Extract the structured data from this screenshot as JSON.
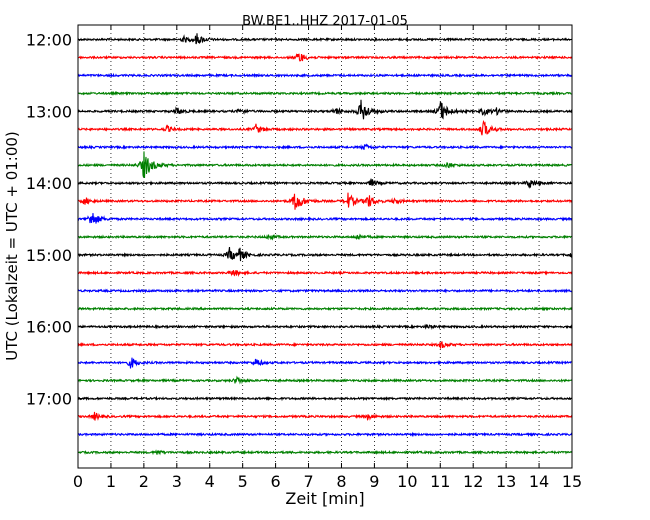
{
  "chart_data": {
    "type": "line",
    "title": "BW.BE1..HHZ 2017-01-05",
    "xlabel": "Zeit  [min]",
    "ylabel": "UTC (Lokalzeit = UTC + 01:00)",
    "xlim": [
      0,
      15
    ],
    "x_ticks": [
      "0",
      "1",
      "2",
      "3",
      "4",
      "5",
      "6",
      "7",
      "8",
      "9",
      "10",
      "11",
      "12",
      "13",
      "14",
      "15"
    ],
    "y_ticks": [
      "12:00",
      "13:00",
      "14:00",
      "15:00",
      "16:00",
      "17:00"
    ],
    "grid": "dotted vertical lines at each minute",
    "legend": "none",
    "colors": [
      "#000000",
      "#ff0000",
      "#0000ff",
      "#008000"
    ],
    "traces": [
      {
        "start": "12:00",
        "color": "#000000",
        "events": [
          [
            3.6,
            6
          ],
          [
            3.2,
            3
          ]
        ]
      },
      {
        "start": "12:15",
        "color": "#ff0000",
        "events": [
          [
            6.7,
            6
          ]
        ]
      },
      {
        "start": "12:30",
        "color": "#0000ff",
        "events": []
      },
      {
        "start": "12:45",
        "color": "#008000",
        "events": []
      },
      {
        "start": "13:00",
        "color": "#000000",
        "events": [
          [
            3.0,
            4
          ],
          [
            4.9,
            3
          ],
          [
            7.8,
            4
          ],
          [
            8.6,
            12
          ],
          [
            11.0,
            11
          ],
          [
            12.3,
            4
          ],
          [
            12.7,
            3
          ]
        ]
      },
      {
        "start": "13:15",
        "color": "#ff0000",
        "events": [
          [
            2.7,
            3
          ],
          [
            5.4,
            5
          ],
          [
            12.3,
            9
          ]
        ]
      },
      {
        "start": "13:30",
        "color": "#0000ff",
        "events": [
          [
            8.7,
            3
          ]
        ]
      },
      {
        "start": "13:45",
        "color": "#008000",
        "events": [
          [
            2.0,
            14
          ],
          [
            11.2,
            3
          ]
        ]
      },
      {
        "start": "14:00",
        "color": "#000000",
        "events": [
          [
            8.9,
            4
          ],
          [
            13.7,
            5
          ]
        ]
      },
      {
        "start": "14:15",
        "color": "#ff0000",
        "events": [
          [
            0.2,
            4
          ],
          [
            6.6,
            11
          ],
          [
            8.2,
            8
          ],
          [
            8.8,
            7
          ],
          [
            9.6,
            3
          ]
        ]
      },
      {
        "start": "14:30",
        "color": "#0000ff",
        "events": [
          [
            0.4,
            9
          ]
        ]
      },
      {
        "start": "14:45",
        "color": "#008000",
        "events": [
          [
            5.8,
            3
          ],
          [
            8.5,
            3
          ]
        ]
      },
      {
        "start": "15:00",
        "color": "#000000",
        "events": [
          [
            4.6,
            7
          ],
          [
            4.9,
            6
          ],
          [
            15.0,
            4
          ]
        ]
      },
      {
        "start": "15:15",
        "color": "#ff0000",
        "events": [
          [
            4.7,
            4
          ]
        ]
      },
      {
        "start": "15:30",
        "color": "#0000ff",
        "events": []
      },
      {
        "start": "15:45",
        "color": "#008000",
        "events": []
      },
      {
        "start": "16:00",
        "color": "#000000",
        "events": [
          [
            10.6,
            2
          ]
        ]
      },
      {
        "start": "16:15",
        "color": "#ff0000",
        "events": [
          [
            11.0,
            4
          ]
        ]
      },
      {
        "start": "16:30",
        "color": "#0000ff",
        "events": [
          [
            1.6,
            6
          ],
          [
            5.4,
            4
          ]
        ]
      },
      {
        "start": "16:45",
        "color": "#008000",
        "events": [
          [
            4.8,
            4
          ]
        ]
      },
      {
        "start": "17:00",
        "color": "#000000",
        "events": []
      },
      {
        "start": "17:15",
        "color": "#ff0000",
        "events": [
          [
            0.5,
            4
          ],
          [
            8.8,
            3
          ]
        ]
      },
      {
        "start": "17:30",
        "color": "#0000ff",
        "events": []
      },
      {
        "start": "17:45",
        "color": "#008000",
        "events": [
          [
            2.4,
            2
          ]
        ]
      }
    ]
  }
}
